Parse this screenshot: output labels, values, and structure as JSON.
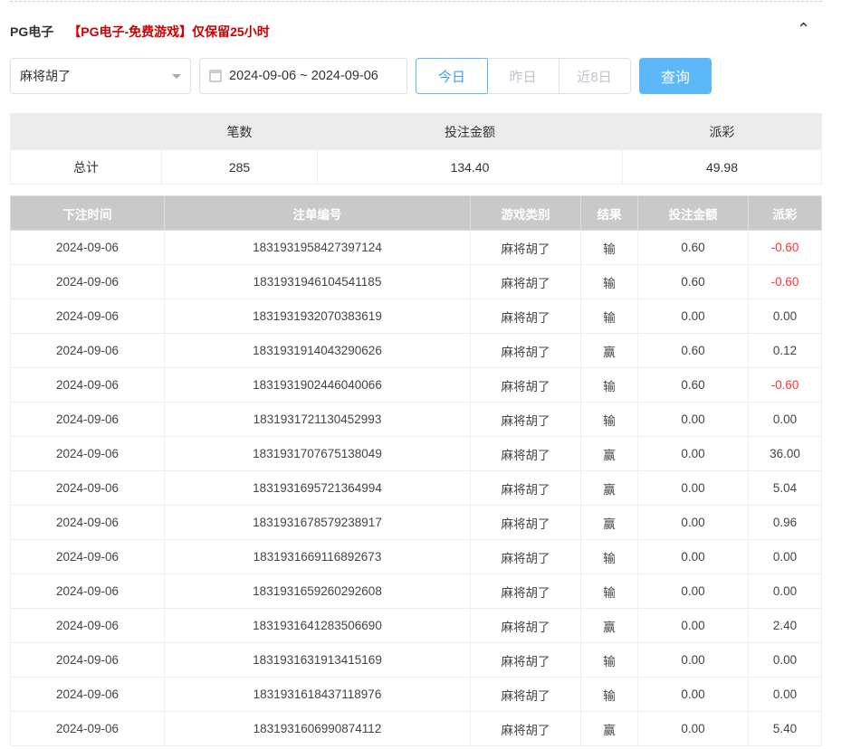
{
  "header": {
    "provider": "PG电子",
    "notice": "【PG电子-免费游戏】仅保留25小时"
  },
  "filters": {
    "game": "麻将胡了",
    "date_range": "2024-09-06 ~ 2024-09-06",
    "today": "今日",
    "yesterday": "昨日",
    "last8": "近8日",
    "query": "查询",
    "active": "today"
  },
  "summary": {
    "headers": [
      "",
      "笔数",
      "投注金额",
      "派彩"
    ],
    "row": [
      "总计",
      "285",
      "134.40",
      "49.98"
    ]
  },
  "table": {
    "headers": [
      "下注时间",
      "注单编号",
      "游戏类别",
      "结果",
      "投注金额",
      "派彩"
    ],
    "rows": [
      [
        "2024-09-06",
        "1831931958427397124",
        "麻将胡了",
        "输",
        "0.60",
        "-0.60"
      ],
      [
        "2024-09-06",
        "1831931946104541185",
        "麻将胡了",
        "输",
        "0.60",
        "-0.60"
      ],
      [
        "2024-09-06",
        "1831931932070383619",
        "麻将胡了",
        "输",
        "0.00",
        "0.00"
      ],
      [
        "2024-09-06",
        "1831931914043290626",
        "麻将胡了",
        "赢",
        "0.60",
        "0.12"
      ],
      [
        "2024-09-06",
        "1831931902446040066",
        "麻将胡了",
        "输",
        "0.60",
        "-0.60"
      ],
      [
        "2024-09-06",
        "1831931721130452993",
        "麻将胡了",
        "输",
        "0.00",
        "0.00"
      ],
      [
        "2024-09-06",
        "1831931707675138049",
        "麻将胡了",
        "赢",
        "0.00",
        "36.00"
      ],
      [
        "2024-09-06",
        "1831931695721364994",
        "麻将胡了",
        "赢",
        "0.00",
        "5.04"
      ],
      [
        "2024-09-06",
        "1831931678579238917",
        "麻将胡了",
        "赢",
        "0.00",
        "0.96"
      ],
      [
        "2024-09-06",
        "1831931669116892673",
        "麻将胡了",
        "输",
        "0.00",
        "0.00"
      ],
      [
        "2024-09-06",
        "1831931659260292608",
        "麻将胡了",
        "输",
        "0.00",
        "0.00"
      ],
      [
        "2024-09-06",
        "1831931641283506690",
        "麻将胡了",
        "赢",
        "0.00",
        "2.40"
      ],
      [
        "2024-09-06",
        "1831931631913415169",
        "麻将胡了",
        "输",
        "0.00",
        "0.00"
      ],
      [
        "2024-09-06",
        "1831931618437118976",
        "麻将胡了",
        "输",
        "0.00",
        "0.00"
      ],
      [
        "2024-09-06",
        "1831931606990874112",
        "麻将胡了",
        "赢",
        "0.00",
        "5.40"
      ]
    ]
  },
  "colors": {
    "negative": "#ff3333",
    "accent": "#409eff",
    "notice": "#cc0000"
  }
}
